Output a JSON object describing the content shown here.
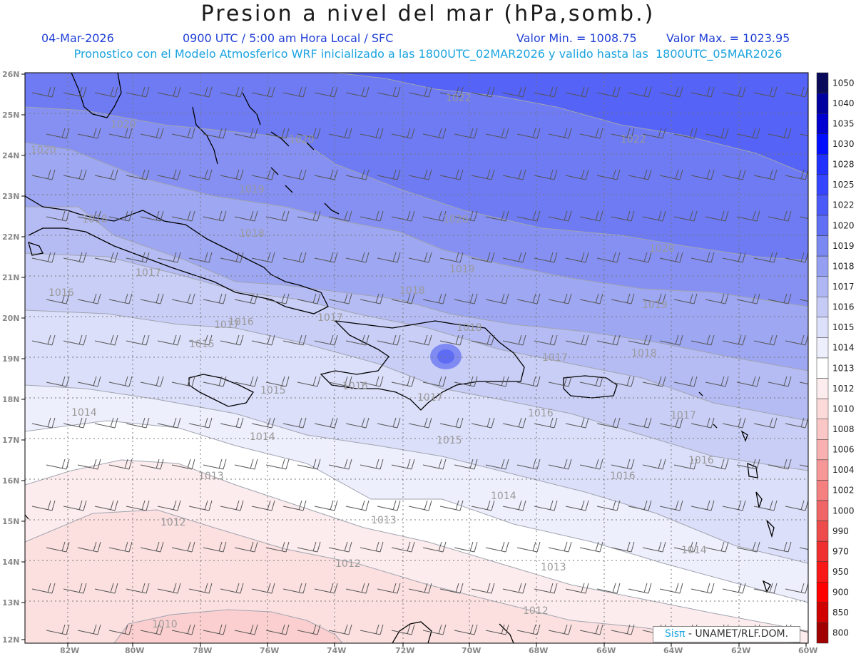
{
  "header": {
    "title": "Presion a nivel del mar (hPa,somb.)",
    "date": "04-Mar-2026",
    "time": "0900 UTC / 5:00 am Hora Local / SFC",
    "min_label": "Valor Min. = 1008.75",
    "max_label": "Valor Max. = 1023.95",
    "subtitle": "Pronostico con el Modelo Atmosferico WRF inicializado a las 1800UTC_02MAR2026 y valido hasta las  1800UTC_05MAR2026"
  },
  "axes": {
    "lat_ticks": [
      "26N",
      "25N",
      "24N",
      "23N",
      "22N",
      "21N",
      "20N",
      "19N",
      "18N",
      "17N",
      "16N",
      "15N",
      "14N",
      "13N",
      "12N"
    ],
    "lon_ticks": [
      "82W",
      "80W",
      "78W",
      "76W",
      "74W",
      "72W",
      "70W",
      "68W",
      "66W",
      "64W",
      "62W",
      "60W"
    ]
  },
  "colorbar": {
    "levels": [
      "1050",
      "1040",
      "1035",
      "1030",
      "1028",
      "1025",
      "1022",
      "1020",
      "1019",
      "1018",
      "1017",
      "1016",
      "1015",
      "1014",
      "1013",
      "1012",
      "1010",
      "1008",
      "1006",
      "1004",
      "1002",
      "1000",
      "990",
      "970",
      "950",
      "900",
      "850",
      "800"
    ],
    "colors": [
      "#0a0a5a",
      "#0000a0",
      "#0000d0",
      "#0010ff",
      "#2030ff",
      "#3444ff",
      "#4a5af8",
      "#6070f4",
      "#7a88f2",
      "#959ff2",
      "#aeb6f4",
      "#c6cbf6",
      "#dde0fa",
      "#eeeffc",
      "#ffffff",
      "#fdeced",
      "#fcdada",
      "#fac6c6",
      "#f8b0b0",
      "#f69898",
      "#f48080",
      "#f06666",
      "#ee4c4c",
      "#f03030",
      "#f81818",
      "#ff0000",
      "#d00000",
      "#a00000"
    ]
  },
  "contour_labels": [
    "1022",
    "1022",
    "1020",
    "1020",
    "1020",
    "1020",
    "1020",
    "1019",
    "1019",
    "1019",
    "1018",
    "1018",
    "1018",
    "1018",
    "1018",
    "1017",
    "1017",
    "1017",
    "1017",
    "1017",
    "1017",
    "1016",
    "1016",
    "1016",
    "1016",
    "1016",
    "1016",
    "1015",
    "1015",
    "1015",
    "1015",
    "1014",
    "1014",
    "1014",
    "1014",
    "1013",
    "1013",
    "1013",
    "1012",
    "1012",
    "1012",
    "1010"
  ],
  "credit": {
    "brand": "Sisπ",
    "org": " - UNAMET/RLF.DOM."
  },
  "colors": {
    "title": "#1a1a1a",
    "info": "#1f3fd6",
    "subtitle": "#1aa3e0",
    "coast": "#000000"
  }
}
